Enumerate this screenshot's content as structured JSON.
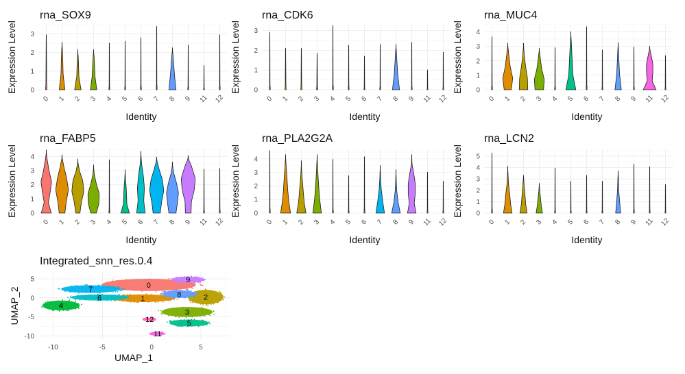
{
  "chart_data": [
    {
      "type": "violin",
      "title": "rna_SOX9",
      "xlabel": "Identity",
      "ylabel": "Expression Level",
      "categories": [
        "0",
        "1",
        "2",
        "3",
        "4",
        "5",
        "6",
        "7",
        "8",
        "9",
        "11",
        "12"
      ],
      "yticks": [
        "0",
        "1",
        "2",
        "3"
      ],
      "ylim": [
        0,
        3.5
      ],
      "max_values": [
        2.95,
        2.55,
        2.15,
        2.15,
        2.5,
        2.6,
        2.8,
        3.4,
        2.25,
        2.4,
        1.3,
        2.95
      ],
      "density": [
        [
          0.05
        ],
        [
          0.4,
          0.15,
          0.1
        ],
        [
          0.45,
          0.15,
          0.1
        ],
        [
          0.45,
          0.2,
          0.12
        ],
        [
          0.02
        ],
        [
          0.02
        ],
        [
          0.02
        ],
        [
          0.02
        ],
        [
          0.5,
          0.3,
          0.15
        ],
        [
          0.02
        ],
        [
          0.02
        ],
        [
          0.02
        ]
      ],
      "colors": [
        "#F8766D",
        "#DE8C00",
        "#B79F00",
        "#7CAE00",
        "#00BA38",
        "#00C08B",
        "#00BFC4",
        "#00B4F0",
        "#619CFF",
        "#C77CFF",
        "#F564E3",
        "#FF64B0"
      ]
    },
    {
      "type": "violin",
      "title": "rna_CDK6",
      "xlabel": "Identity",
      "ylabel": "Expression Level",
      "categories": [
        "0",
        "1",
        "2",
        "3",
        "4",
        "5",
        "6",
        "7",
        "8",
        "9",
        "11",
        "12"
      ],
      "yticks": [
        "0",
        "1",
        "2",
        "3"
      ],
      "ylim": [
        0,
        3.3
      ],
      "max_values": [
        2.9,
        2.1,
        2.1,
        1.85,
        3.25,
        2.25,
        1.7,
        2.3,
        2.3,
        2.4,
        1.0,
        1.9
      ],
      "density": [
        [
          0.02
        ],
        [
          0.04
        ],
        [
          0.04
        ],
        [
          0.04
        ],
        [
          0.02
        ],
        [
          0.02
        ],
        [
          0.02
        ],
        [
          0.02
        ],
        [
          0.5,
          0.25,
          0.12
        ],
        [
          0.02
        ],
        [
          0.02
        ],
        [
          0.02
        ]
      ],
      "colors": [
        "#F8766D",
        "#DE8C00",
        "#B79F00",
        "#7CAE00",
        "#00BA38",
        "#00C08B",
        "#00BFC4",
        "#00B4F0",
        "#619CFF",
        "#C77CFF",
        "#F564E3",
        "#FF64B0"
      ]
    },
    {
      "type": "violin",
      "title": "rna_MUC4",
      "xlabel": "Identity",
      "ylabel": "Expression Level",
      "categories": [
        "0",
        "1",
        "2",
        "3",
        "4",
        "5",
        "6",
        "7",
        "8",
        "9",
        "11",
        "12"
      ],
      "yticks": [
        "0",
        "1",
        "2",
        "3",
        "4"
      ],
      "ylim": [
        0,
        4.5
      ],
      "max_values": [
        3.65,
        3.2,
        3.2,
        2.85,
        2.9,
        4.0,
        4.35,
        2.75,
        3.25,
        2.95,
        3.0,
        2.35
      ],
      "density": [
        [
          0.02
        ],
        [
          0.5,
          0.7,
          0.35,
          0.15
        ],
        [
          0.6,
          0.55,
          0.3,
          0.1
        ],
        [
          0.6,
          0.7,
          0.35,
          0.15
        ],
        [
          0.02
        ],
        [
          0.7,
          0.3,
          0.2,
          0.1
        ],
        [
          0.02
        ],
        [
          0.02
        ],
        [
          0.45,
          0.2,
          0.1
        ],
        [
          0.02
        ],
        [
          0.9,
          0.35,
          0.45,
          0.45,
          0.2
        ],
        [
          0.02
        ]
      ],
      "colors": [
        "#F8766D",
        "#DE8C00",
        "#B79F00",
        "#7CAE00",
        "#00BA38",
        "#00C08B",
        "#00BFC4",
        "#00B4F0",
        "#619CFF",
        "#C77CFF",
        "#F564E3",
        "#FF64B0"
      ]
    },
    {
      "type": "violin",
      "title": "rna_FABP5",
      "xlabel": "Identity",
      "ylabel": "Expression Level",
      "categories": [
        "0",
        "1",
        "2",
        "3",
        "4",
        "5",
        "6",
        "7",
        "8",
        "9",
        "11",
        "12"
      ],
      "yticks": [
        "0",
        "1",
        "2",
        "3",
        "4"
      ],
      "ylim": [
        0,
        4.5
      ],
      "max_values": [
        4.45,
        4.1,
        3.8,
        3.4,
        3.75,
        3.05,
        4.35,
        3.95,
        3.6,
        4.05,
        3.1,
        3.15
      ],
      "density": [
        [
          0.7,
          0.3,
          0.55,
          0.75,
          0.4,
          0.15
        ],
        [
          0.4,
          0.6,
          0.9,
          0.65,
          0.25
        ],
        [
          0.3,
          0.5,
          0.85,
          0.7,
          0.2
        ],
        [
          0.4,
          0.75,
          0.8,
          0.4,
          0.1
        ],
        [
          0.02
        ],
        [
          0.6,
          0.25,
          0.2,
          0.15,
          0.05
        ],
        [
          0.6,
          0.4,
          0.5,
          0.35,
          0.1
        ],
        [
          0.5,
          0.7,
          1.0,
          0.8,
          0.3
        ],
        [
          0.5,
          0.7,
          0.85,
          0.55,
          0.15
        ],
        [
          0.4,
          0.45,
          0.85,
          1.0,
          0.5
        ],
        [
          0.02
        ],
        [
          0.02
        ]
      ],
      "colors": [
        "#F8766D",
        "#DE8C00",
        "#B79F00",
        "#7CAE00",
        "#00BA38",
        "#00C08B",
        "#00BFC4",
        "#00B4F0",
        "#619CFF",
        "#C77CFF",
        "#F564E3",
        "#FF64B0"
      ]
    },
    {
      "type": "violin",
      "title": "rna_PLA2G2A",
      "xlabel": "Identity",
      "ylabel": "Expression Level",
      "categories": [
        "0",
        "1",
        "2",
        "3",
        "4",
        "5",
        "6",
        "7",
        "8",
        "9",
        "11",
        "12"
      ],
      "yticks": [
        "0",
        "1",
        "2",
        "3",
        "4"
      ],
      "ylim": [
        0,
        4.7
      ],
      "max_values": [
        4.6,
        4.3,
        3.85,
        4.3,
        3.95,
        2.75,
        4.15,
        3.5,
        3.2,
        4.3,
        3.0,
        2.35
      ],
      "density": [
        [
          0.02
        ],
        [
          0.7,
          0.45,
          0.3,
          0.2,
          0.08
        ],
        [
          0.65,
          0.4,
          0.28,
          0.15,
          0.05
        ],
        [
          0.6,
          0.35,
          0.2,
          0.08
        ],
        [
          0.02
        ],
        [
          0.02
        ],
        [
          0.02
        ],
        [
          0.6,
          0.35,
          0.15,
          0.05
        ],
        [
          0.6,
          0.3,
          0.12,
          0.04
        ],
        [
          0.6,
          0.35,
          0.5,
          0.5,
          0.3,
          0.05
        ],
        [
          0.02
        ],
        [
          0.02
        ]
      ],
      "colors": [
        "#F8766D",
        "#DE8C00",
        "#B79F00",
        "#7CAE00",
        "#00BA38",
        "#00C08B",
        "#00BFC4",
        "#00B4F0",
        "#619CFF",
        "#C77CFF",
        "#F564E3",
        "#FF64B0"
      ]
    },
    {
      "type": "violin",
      "title": "rna_LCN2",
      "xlabel": "Identity",
      "ylabel": "Expression Level",
      "categories": [
        "0",
        "1",
        "2",
        "3",
        "4",
        "5",
        "6",
        "7",
        "8",
        "9",
        "11",
        "12"
      ],
      "yticks": [
        "0",
        "1",
        "2",
        "3",
        "4",
        "5"
      ],
      "ylim": [
        0,
        5.6
      ],
      "max_values": [
        5.25,
        4.1,
        3.3,
        2.6,
        3.95,
        2.8,
        3.3,
        2.8,
        3.7,
        4.3,
        4.05,
        2.5
      ],
      "density": [
        [
          0.02
        ],
        [
          0.6,
          0.4,
          0.28,
          0.12,
          0.05
        ],
        [
          0.5,
          0.3,
          0.2,
          0.08
        ],
        [
          0.45,
          0.28,
          0.18,
          0.06
        ],
        [
          0.02
        ],
        [
          0.02
        ],
        [
          0.02
        ],
        [
          0.02
        ],
        [
          0.35,
          0.1
        ],
        [
          0.02
        ],
        [
          0.02
        ],
        [
          0.02
        ]
      ],
      "colors": [
        "#F8766D",
        "#DE8C00",
        "#B79F00",
        "#7CAE00",
        "#00BA38",
        "#00C08B",
        "#00BFC4",
        "#00B4F0",
        "#619CFF",
        "#C77CFF",
        "#F564E3",
        "#FF64B0"
      ]
    },
    {
      "type": "scatter",
      "title": "Integrated_snn_res.0.4",
      "xlabel": "UMAP_1",
      "ylabel": "UMAP_2",
      "xticks": [
        "-10",
        "-5",
        "0",
        "5"
      ],
      "yticks": [
        "5",
        "0",
        "-5",
        "-10"
      ],
      "xlim": [
        -11.5,
        8
      ],
      "ylim": [
        -11,
        6.8
      ],
      "clusters": [
        {
          "label": "0",
          "x": -0.3,
          "y": 3.4,
          "rx": 4.8,
          "ry": 1.6,
          "color": "#F8766D"
        },
        {
          "label": "1",
          "x": -0.9,
          "y": -0.1,
          "rx": 3.2,
          "ry": 1.0,
          "color": "#DE8C00"
        },
        {
          "label": "2",
          "x": 5.5,
          "y": 0.2,
          "rx": 1.8,
          "ry": 1.9,
          "color": "#B79F00"
        },
        {
          "label": "3",
          "x": 3.6,
          "y": -3.7,
          "rx": 2.6,
          "ry": 1.3,
          "color": "#7CAE00"
        },
        {
          "label": "4",
          "x": -9.2,
          "y": -2.0,
          "rx": 1.9,
          "ry": 1.3,
          "color": "#00BA38"
        },
        {
          "label": "5",
          "x": 3.8,
          "y": -6.6,
          "rx": 2.0,
          "ry": 0.9,
          "color": "#00C08B"
        },
        {
          "label": "6",
          "x": -5.3,
          "y": 0.1,
          "rx": 2.9,
          "ry": 0.8,
          "color": "#00BFC4"
        },
        {
          "label": "7",
          "x": -6.2,
          "y": 2.3,
          "rx": 3.0,
          "ry": 1.0,
          "color": "#00B4F0"
        },
        {
          "label": "8",
          "x": 2.8,
          "y": 1.0,
          "rx": 1.7,
          "ry": 1.0,
          "color": "#619CFF"
        },
        {
          "label": "9",
          "x": 3.7,
          "y": 4.8,
          "rx": 1.6,
          "ry": 0.8,
          "color": "#C77CFF"
        },
        {
          "label": "11",
          "x": 0.6,
          "y": -9.4,
          "rx": 0.7,
          "ry": 0.4,
          "color": "#F564E3"
        },
        {
          "label": "12",
          "x": -0.2,
          "y": -5.6,
          "rx": 0.6,
          "ry": 0.4,
          "color": "#FF64B0"
        }
      ]
    }
  ]
}
